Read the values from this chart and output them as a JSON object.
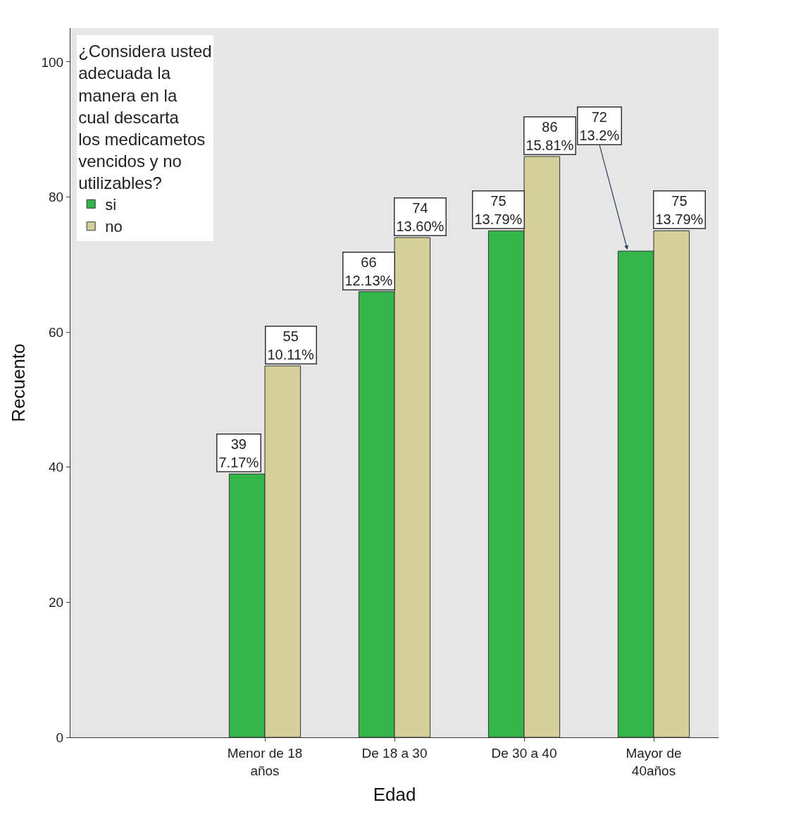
{
  "chart_data": {
    "type": "bar",
    "xlabel": "Edad",
    "ylabel": "Recuento",
    "legend_title": "¿Considera usted adecuada la manera en la cual descarta los medicametos vencidos y no utilizables?",
    "legend": "top left",
    "grid": false,
    "categories": [
      null,
      "Menor de 18 años",
      "De 18 a 30",
      "De 30 a 40",
      "Mayor de 40años"
    ],
    "ylim": [
      0,
      105
    ],
    "yticks": [
      0,
      20,
      40,
      60,
      80,
      100
    ],
    "series": [
      {
        "name": "si",
        "color": "#33b54a",
        "values": [
          null,
          39,
          66,
          75,
          72
        ],
        "value_labels": [
          null,
          "39\n7.17%",
          "66\n12.13%",
          "75\n13.79%",
          "72\n13.2%"
        ]
      },
      {
        "name": "no",
        "color": "#d5cf9a",
        "values": [
          null,
          55,
          74,
          86,
          75
        ],
        "value_labels": [
          null,
          "55\n10.11%",
          "74\n13.60%",
          "86\n15.81%",
          "75\n13.79%"
        ]
      }
    ]
  }
}
